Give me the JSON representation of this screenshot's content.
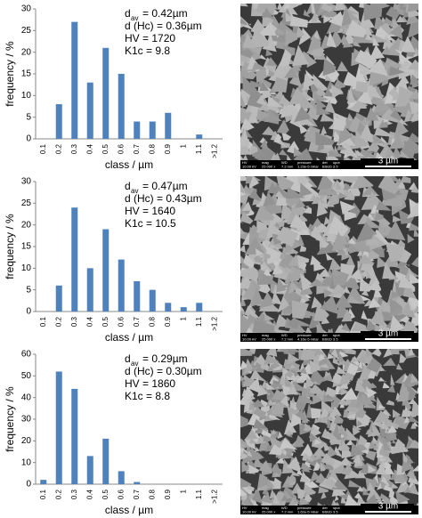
{
  "chart_data": [
    {
      "type": "bar",
      "x_label": "class / µm",
      "y_label": "frequency / %",
      "annotation": {
        "symbol": "d",
        "subscript": "av",
        "text": "= 0.42µm",
        "lines": [
          "d (Hc) = 0.36µm",
          "HV = 1720",
          "K1c = 9.8"
        ]
      },
      "categories": [
        "0.1",
        "0.2",
        "0.3",
        "0.4",
        "0.5",
        "0.6",
        "0.7",
        "0.8",
        "0.9",
        "1",
        "1.1",
        ">1.2"
      ],
      "values": [
        0,
        8,
        27,
        13,
        21,
        15,
        4,
        4,
        6,
        0,
        1,
        0
      ],
      "color": "#4f81bd",
      "ylim": [
        0,
        30
      ],
      "yticks": [
        0,
        5,
        10,
        15,
        20,
        25,
        30
      ]
    },
    {
      "type": "bar",
      "x_label": "class / µm",
      "y_label": "frequency / %",
      "annotation": {
        "symbol": "d",
        "subscript": "av",
        "text": "= 0.47µm",
        "lines": [
          "d (Hc) = 0.43µm",
          "HV = 1640",
          "K1c = 10.5"
        ]
      },
      "categories": [
        "0.1",
        "0.2",
        "0.3",
        "0.4",
        "0.5",
        "0.6",
        "0.7",
        "0.8",
        "0.9",
        "1",
        "1.1",
        ">1.2"
      ],
      "values": [
        0,
        6,
        24,
        10,
        19,
        12,
        7,
        5,
        2,
        1,
        2,
        0
      ],
      "color": "#4f81bd",
      "ylim": [
        0,
        30
      ],
      "yticks": [
        0,
        5,
        10,
        15,
        20,
        25,
        30
      ]
    },
    {
      "type": "bar",
      "x_label": "class / µm",
      "y_label": "frequency / %",
      "annotation": {
        "symbol": "d",
        "subscript": "av",
        "text": "= 0.29µm",
        "lines": [
          "d (Hc) = 0.30µm",
          "HV = 1860",
          "K1c = 8.8"
        ]
      },
      "categories": [
        "0.1",
        "0.2",
        "0.3",
        "0.4",
        "0.5",
        "0.6",
        "0.7",
        "0.8",
        "0.9",
        "1",
        "1.1",
        ">1.2"
      ],
      "values": [
        2,
        52,
        44,
        13,
        21,
        6,
        1,
        0,
        0,
        0,
        0,
        0
      ],
      "color": "#4f81bd",
      "ylim": [
        0,
        60
      ],
      "yticks": [
        0,
        10,
        20,
        30,
        40,
        50,
        60
      ]
    }
  ],
  "images": [
    {
      "scale_label": "3 µm",
      "info_labels": [
        "HV",
        "mag",
        "WD",
        "pressure",
        "det",
        "spot"
      ],
      "info_values": [
        "10.00 kV",
        "25 000 x",
        "7.2 mm",
        "1.23e-5 mbar",
        "BSED",
        "3.5"
      ]
    },
    {
      "scale_label": "3 µm",
      "info_labels": [
        "HV",
        "mag",
        "WD",
        "pressure",
        "det",
        "spot"
      ],
      "info_values": [
        "10.00 kV",
        "25 000 x",
        "7.2 mm",
        "4.16e-5 mbar",
        "BSED",
        "3.5"
      ]
    },
    {
      "scale_label": "3 µm",
      "info_labels": [
        "HV",
        "mag",
        "WD",
        "pressure",
        "det",
        "spot"
      ],
      "info_values": [
        "10.00 kV",
        "25 000 x",
        "7.2 mm",
        "1.62e-5 mbar",
        "BSED",
        "3.5"
      ]
    }
  ]
}
